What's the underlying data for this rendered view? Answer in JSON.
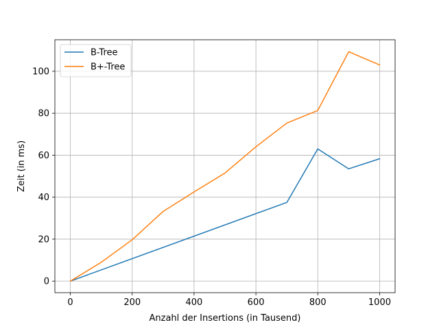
{
  "chart_data": {
    "type": "line",
    "title": "",
    "xlabel": "Anzahl der Insertions (in Tausend)",
    "ylabel": "Zeit (in ms)",
    "xlim": [
      -50,
      1050
    ],
    "ylim": [
      -5.5,
      115
    ],
    "xticks": [
      0,
      200,
      400,
      600,
      800,
      1000
    ],
    "yticks": [
      0,
      20,
      40,
      60,
      80,
      100
    ],
    "grid": true,
    "legend_position": "top-left",
    "series": [
      {
        "name": "B-Tree",
        "color": "#1f77b4",
        "points": [
          [
            0,
            0
          ],
          [
            700,
            37.5
          ],
          [
            800,
            63
          ],
          [
            900,
            53.5
          ],
          [
            1000,
            58.3
          ]
        ]
      },
      {
        "name": "B+-Tree",
        "color": "#ff7f0e",
        "points": [
          [
            0,
            0
          ],
          [
            100,
            9
          ],
          [
            200,
            19.7
          ],
          [
            300,
            33.2
          ],
          [
            400,
            42.5
          ],
          [
            500,
            51.5
          ],
          [
            600,
            64
          ],
          [
            700,
            75.3
          ],
          [
            800,
            81.3
          ],
          [
            900,
            109.3
          ],
          [
            1000,
            103
          ]
        ]
      }
    ]
  }
}
